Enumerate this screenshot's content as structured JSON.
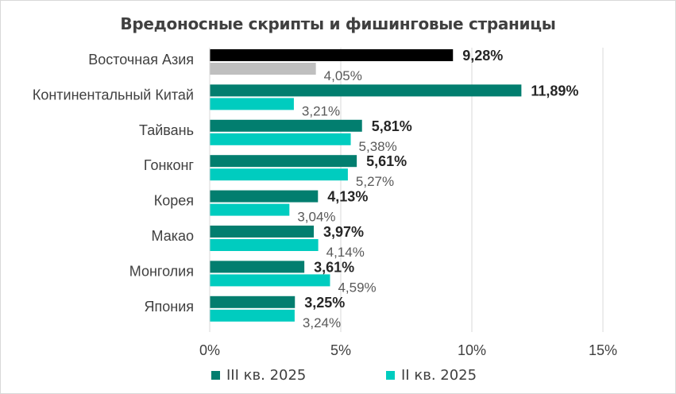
{
  "chart_data": {
    "type": "bar",
    "orientation": "horizontal",
    "title": "Вредоносные скрипты и фишинговые страницы",
    "categories": [
      "Восточная Азия",
      "Континентальный Китай",
      "Тайвань",
      "Гонконг",
      "Корея",
      "Макао",
      "Монголия",
      "Япония"
    ],
    "series": [
      {
        "name": "III кв. 2025",
        "values": [
          9.28,
          11.89,
          5.81,
          5.61,
          4.13,
          3.97,
          3.61,
          3.25
        ],
        "labels": [
          "9,28%",
          "11,89%",
          "5,81%",
          "5,61%",
          "4,13%",
          "3,97%",
          "3,61%",
          "3,25%"
        ],
        "color": "#027e6f",
        "highlight_color": "#000000"
      },
      {
        "name": "II кв. 2025",
        "values": [
          4.05,
          3.21,
          5.38,
          5.27,
          3.04,
          4.14,
          4.59,
          3.24
        ],
        "labels": [
          "4,05%",
          "3,21%",
          "5,38%",
          "5,27%",
          "3,04%",
          "4,14%",
          "4,59%",
          "3,24%"
        ],
        "color": "#00ccbf",
        "highlight_color": "#bfbfbf"
      }
    ],
    "x_ticks": [
      0,
      5,
      10,
      15
    ],
    "x_tick_labels": [
      "0%",
      "5%",
      "10%",
      "15%"
    ],
    "xlim": [
      0,
      15
    ],
    "grid": "vertical",
    "legend_position": "bottom",
    "highlighted_category": "Восточная Азия"
  }
}
